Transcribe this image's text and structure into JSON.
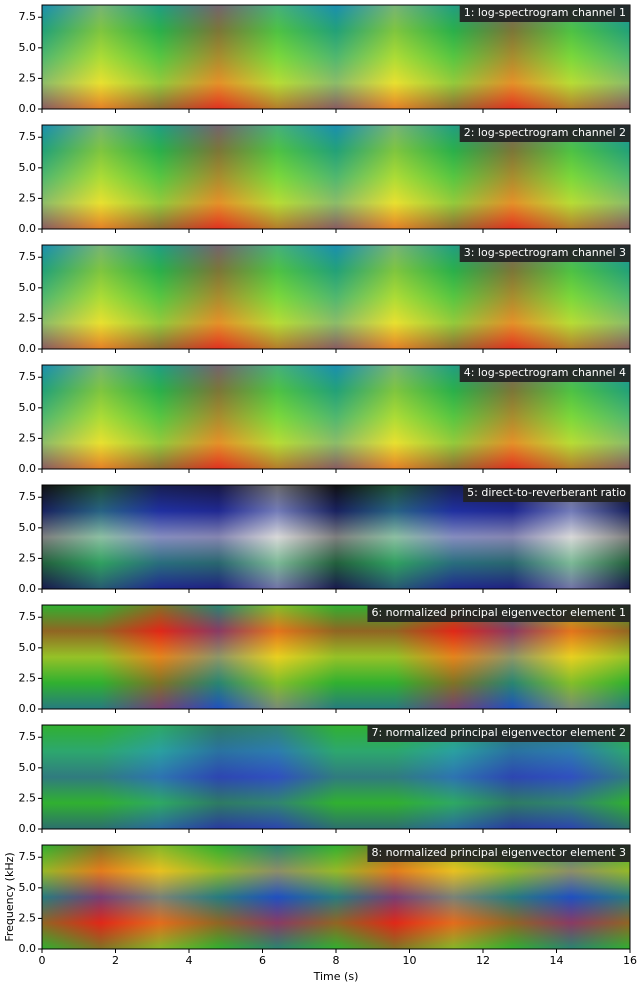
{
  "chart_data": [
    {
      "type": "heatmap",
      "title": "1: log-spectrogram channel 1",
      "xlim": [
        0,
        16
      ],
      "xticks": [
        0,
        2,
        4,
        6,
        8,
        10,
        12,
        14,
        16
      ],
      "ylim": [
        0,
        8.5
      ],
      "yticks": [
        {
          "value": 0,
          "label": "0.0"
        },
        2.5,
        {
          "value": 5,
          "label": "5.0"
        },
        7.5
      ],
      "colors": [
        "#1a8fb0",
        "#2ab04a",
        "#7bd83a",
        "#e8e030",
        "#e03020"
      ]
    },
    {
      "type": "heatmap",
      "title": "2: log-spectrogram channel 2",
      "xlim": [
        0,
        16
      ],
      "xticks": [
        0,
        2,
        4,
        6,
        8,
        10,
        12,
        14,
        16
      ],
      "ylim": [
        0,
        8.5
      ],
      "yticks": [
        {
          "value": 0,
          "label": "0.0"
        },
        2.5,
        {
          "value": 5,
          "label": "5.0"
        },
        7.5
      ],
      "colors": [
        "#1a8fb0",
        "#2ab04a",
        "#7bd83a",
        "#e8e030",
        "#e03020"
      ]
    },
    {
      "type": "heatmap",
      "title": "3: log-spectrogram channel 3",
      "xlim": [
        0,
        16
      ],
      "xticks": [
        0,
        2,
        4,
        6,
        8,
        10,
        12,
        14,
        16
      ],
      "ylim": [
        0,
        8.5
      ],
      "yticks": [
        {
          "value": 0,
          "label": "0.0"
        },
        2.5,
        {
          "value": 5,
          "label": "5.0"
        },
        7.5
      ],
      "colors": [
        "#1a8fb0",
        "#2ab04a",
        "#7bd83a",
        "#e8e030",
        "#e03020"
      ]
    },
    {
      "type": "heatmap",
      "title": "4: log-spectrogram channel 4",
      "xlim": [
        0,
        16
      ],
      "xticks": [
        0,
        2,
        4,
        6,
        8,
        10,
        12,
        14,
        16
      ],
      "ylim": [
        0,
        8.5
      ],
      "yticks": [
        {
          "value": 0,
          "label": "0.0"
        },
        2.5,
        {
          "value": 5,
          "label": "5.0"
        },
        7.5
      ],
      "colors": [
        "#1a8fb0",
        "#2ab04a",
        "#7bd83a",
        "#e8e030",
        "#e03020"
      ]
    },
    {
      "type": "heatmap",
      "title": "5: direct-to-reverberant ratio",
      "xlim": [
        0,
        16
      ],
      "xticks": [
        0,
        2,
        4,
        6,
        8,
        10,
        12,
        14,
        16
      ],
      "ylim": [
        0,
        8.5
      ],
      "yticks": [
        {
          "value": 0,
          "label": "0.0"
        },
        2.5,
        {
          "value": 5,
          "label": "5.0"
        },
        7.5
      ],
      "colors": [
        "#101010",
        "#2030a0",
        "#d8d8d8",
        "#30a060",
        "#202080"
      ]
    },
    {
      "type": "heatmap",
      "title": "6: normalized principal eigenvector element 1",
      "xlim": [
        0,
        16
      ],
      "xticks": [
        0,
        2,
        4,
        6,
        8,
        10,
        12,
        14,
        16
      ],
      "ylim": [
        0,
        8.5
      ],
      "yticks": [
        {
          "value": 0,
          "label": "0.0"
        },
        2.5,
        {
          "value": 5,
          "label": "5.0"
        },
        7.5
      ],
      "colors": [
        "#30b030",
        "#e02818",
        "#e8d020",
        "#30b030",
        "#2050c0"
      ]
    },
    {
      "type": "heatmap",
      "title": "7: normalized principal eigenvector element 2",
      "xlim": [
        0,
        16
      ],
      "xticks": [
        0,
        2,
        4,
        6,
        8,
        10,
        12,
        14,
        16
      ],
      "ylim": [
        0,
        8.5
      ],
      "yticks": [
        {
          "value": 0,
          "label": "0.0"
        },
        2.5,
        {
          "value": 5,
          "label": "5.0"
        },
        7.5
      ],
      "colors": [
        "#30b030",
        "#2aa0a0",
        "#3050c0",
        "#30b030",
        "#2a3aa0"
      ]
    },
    {
      "type": "heatmap",
      "title": "8: normalized principal eigenvector element 3",
      "xlim": [
        0,
        16
      ],
      "xticks": [
        0,
        2,
        4,
        6,
        8,
        10,
        12,
        14,
        16
      ],
      "ylim": [
        0,
        8.5
      ],
      "yticks": [
        {
          "value": 0,
          "label": "0.0"
        },
        2.5,
        {
          "value": 5,
          "label": "5.0"
        },
        7.5
      ],
      "colors": [
        "#30b030",
        "#e8c020",
        "#2050c0",
        "#e02818",
        "#30b030"
      ],
      "xlabel": "Time (s)",
      "ylabel": "Frequency (kHz)"
    }
  ]
}
